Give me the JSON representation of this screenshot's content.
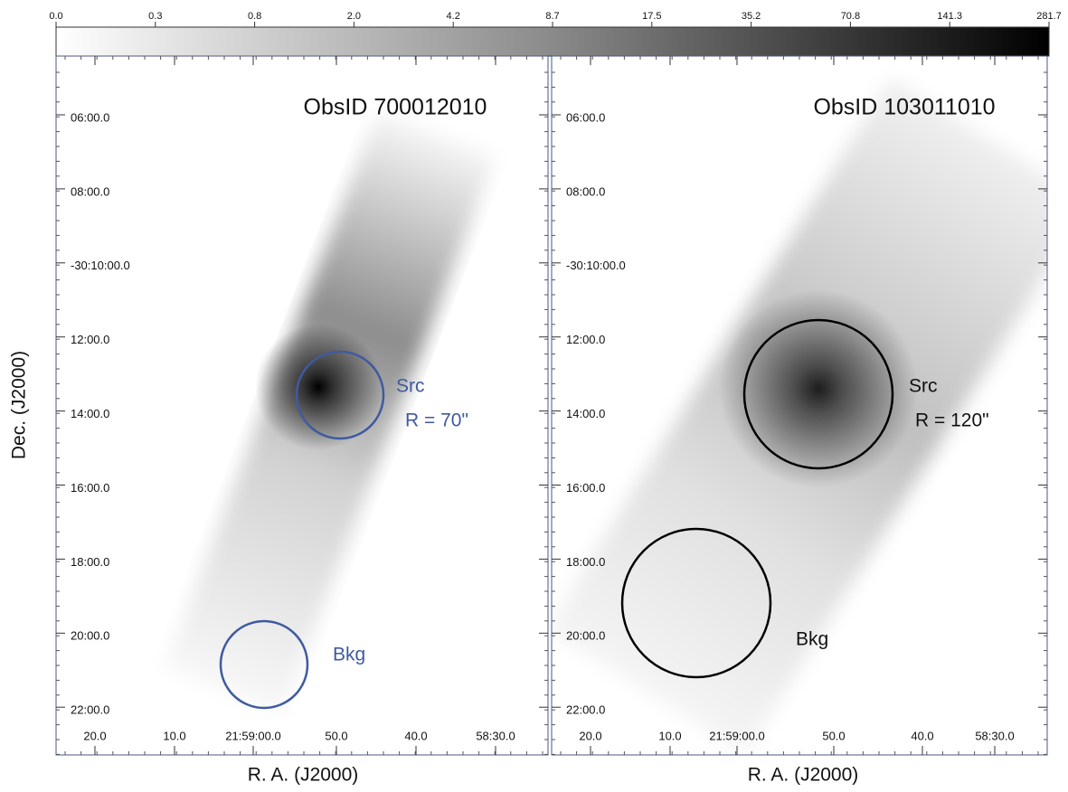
{
  "colorbar": {
    "labels": [
      "0.0",
      "0.3",
      "0.8",
      "2.0",
      "4.2",
      "8.7",
      "17.5",
      "35.2",
      "70.8",
      "141.3",
      "281.7"
    ]
  },
  "axes": {
    "y_label": "Dec. (J2000)",
    "x_label": "R. A. (J2000)"
  },
  "panels": [
    {
      "title": "ObsID 700012010",
      "dec_ticks": [
        "06:00.0",
        "08:00.0",
        "-30:10:00.0",
        "12:00.0",
        "14:00.0",
        "16:00.0",
        "18:00.0",
        "20:00.0",
        "22:00.0"
      ],
      "ra_ticks": [
        "20.0",
        "10.0",
        "21:59:00.0",
        "50.0",
        "40.0",
        "58:30.0"
      ],
      "src_label": "Src",
      "radius_label": "R = 70\"",
      "bkg_label": "Bkg"
    },
    {
      "title": "ObsID 103011010",
      "dec_ticks": [
        "06:00.0",
        "08:00.0",
        "-30:10:00.0",
        "12:00.0",
        "14:00.0",
        "16:00.0",
        "18:00.0",
        "20:00.0",
        "22:00.0"
      ],
      "ra_ticks": [
        "20.0",
        "10.0",
        "21:59:00.0",
        "50.0",
        "40.0",
        "58:30.0"
      ],
      "src_label": "Src",
      "radius_label": "R = 120\"",
      "bkg_label": "Bkg"
    }
  ]
}
